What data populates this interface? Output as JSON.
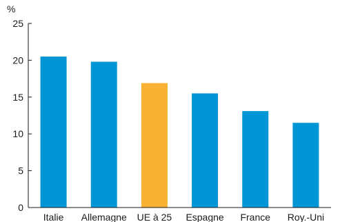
{
  "chart_data": {
    "type": "bar",
    "ylabel": "%",
    "categories": [
      "Italie",
      "Allemagne",
      "UE à 25",
      "Espagne",
      "France",
      "Roy.-Uni"
    ],
    "values": [
      20.5,
      19.8,
      16.9,
      15.5,
      13.1,
      11.5
    ],
    "highlight_category": "UE à 25",
    "ylim": [
      0,
      25
    ],
    "yticks": [
      0,
      5,
      10,
      15,
      20,
      25
    ],
    "grid": false,
    "colors": {
      "bar": "#0096d6",
      "highlight": "#f9b233",
      "axis": "#1a1a1a"
    }
  }
}
